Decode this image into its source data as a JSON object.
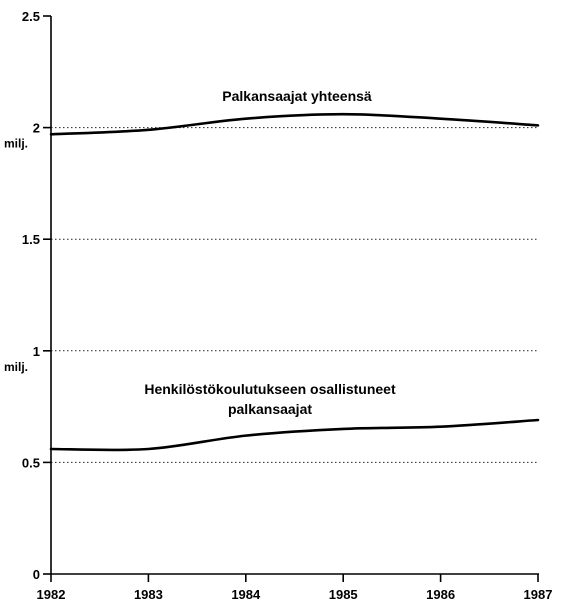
{
  "chart_data": {
    "type": "line",
    "x": [
      "1982",
      "1983",
      "1984",
      "1985",
      "1986",
      "1987"
    ],
    "ylim": [
      0,
      2.5
    ],
    "yticks": [
      "0",
      "0.5",
      "1",
      "1.5",
      "2",
      "2.5"
    ],
    "ytick_values": [
      0,
      0.5,
      1,
      1.5,
      2,
      2.5
    ],
    "unit_labels": [
      {
        "at": 2,
        "text": "milj."
      },
      {
        "at": 1,
        "text": "milj."
      }
    ],
    "grid": "horizontal dotted at 0.5, 1, 1.5, 2",
    "series": [
      {
        "name": "Palkansaajat yhteensä",
        "label_lines": [
          "Palkansaajat yhteensä"
        ],
        "values": [
          1.97,
          1.99,
          2.04,
          2.06,
          2.04,
          2.01
        ]
      },
      {
        "name": "Henkilöstökoulutukseen osallistuneet palkansaajat",
        "label_lines": [
          "Henkilöstökoulutukseen osallistuneet",
          "palkansaajat"
        ],
        "values": [
          0.56,
          0.56,
          0.62,
          0.65,
          0.66,
          0.69
        ]
      }
    ],
    "title": "",
    "xlabel": "",
    "ylabel": ""
  }
}
